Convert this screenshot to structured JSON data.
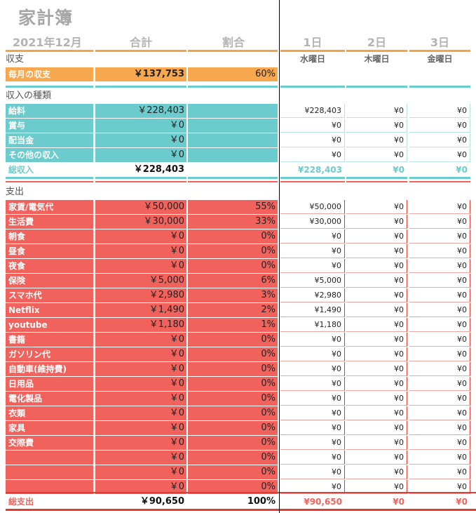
{
  "title": "家計簿",
  "header": {
    "month": "2021年12月",
    "total": "合計",
    "ratio": "割合",
    "days": [
      {
        "label": "1日",
        "weekday": "水曜日"
      },
      {
        "label": "2日",
        "weekday": "木曜日"
      },
      {
        "label": "3日",
        "weekday": "金曜日"
      }
    ]
  },
  "balance": {
    "section": "収支",
    "label": "毎月の収支",
    "total": "￥137,753",
    "ratio": "60%"
  },
  "income": {
    "section": "収入の種類",
    "rows": [
      {
        "label": "給料",
        "total": "￥228,403",
        "days": [
          "¥228,403",
          "¥0",
          "¥0"
        ]
      },
      {
        "label": "賞与",
        "total": "￥0",
        "days": [
          "¥0",
          "¥0",
          "¥0"
        ]
      },
      {
        "label": "配当金",
        "total": "￥0",
        "days": [
          "¥0",
          "¥0",
          "¥0"
        ]
      },
      {
        "label": "その他の収入",
        "total": "￥0",
        "days": [
          "¥0",
          "¥0",
          "¥0"
        ]
      }
    ],
    "sum": {
      "label": "総収入",
      "total": "￥228,403",
      "days": [
        "¥228,403",
        "¥0",
        "¥0"
      ]
    }
  },
  "expense": {
    "section": "支出",
    "rows": [
      {
        "label": "家賃/電気代",
        "total": "￥50,000",
        "ratio": "55%",
        "days": [
          "¥50,000",
          "¥0",
          "¥0"
        ]
      },
      {
        "label": "生活費",
        "total": "￥30,000",
        "ratio": "33%",
        "days": [
          "¥30,000",
          "¥0",
          "¥0"
        ]
      },
      {
        "label": "朝食",
        "total": "￥0",
        "ratio": "0%",
        "days": [
          "¥0",
          "¥0",
          "¥0"
        ]
      },
      {
        "label": "昼食",
        "total": "￥0",
        "ratio": "0%",
        "days": [
          "¥0",
          "¥0",
          "¥0"
        ]
      },
      {
        "label": "夜食",
        "total": "￥0",
        "ratio": "0%",
        "days": [
          "¥0",
          "¥0",
          "¥0"
        ]
      },
      {
        "label": "保険",
        "total": "￥5,000",
        "ratio": "6%",
        "days": [
          "¥5,000",
          "¥0",
          "¥0"
        ]
      },
      {
        "label": "スマホ代",
        "total": "￥2,980",
        "ratio": "3%",
        "days": [
          "¥2,980",
          "¥0",
          "¥0"
        ]
      },
      {
        "label": "Netflix",
        "total": "￥1,490",
        "ratio": "2%",
        "days": [
          "¥1,490",
          "¥0",
          "¥0"
        ]
      },
      {
        "label": "youtube",
        "total": "￥1,180",
        "ratio": "1%",
        "days": [
          "¥1,180",
          "¥0",
          "¥0"
        ]
      },
      {
        "label": "書籍",
        "total": "￥0",
        "ratio": "0%",
        "days": [
          "¥0",
          "¥0",
          "¥0"
        ]
      },
      {
        "label": "ガソリン代",
        "total": "￥0",
        "ratio": "0%",
        "days": [
          "¥0",
          "¥0",
          "¥0"
        ]
      },
      {
        "label": "自動車(維持費)",
        "total": "￥0",
        "ratio": "0%",
        "days": [
          "¥0",
          "¥0",
          "¥0"
        ]
      },
      {
        "label": "日用品",
        "total": "￥0",
        "ratio": "0%",
        "days": [
          "¥0",
          "¥0",
          "¥0"
        ]
      },
      {
        "label": "電化製品",
        "total": "￥0",
        "ratio": "0%",
        "days": [
          "¥0",
          "¥0",
          "¥0"
        ]
      },
      {
        "label": "衣類",
        "total": "￥0",
        "ratio": "0%",
        "days": [
          "¥0",
          "¥0",
          "¥0"
        ]
      },
      {
        "label": "家具",
        "total": "￥0",
        "ratio": "0%",
        "days": [
          "¥0",
          "¥0",
          "¥0"
        ]
      },
      {
        "label": "交際費",
        "total": "￥0",
        "ratio": "0%",
        "days": [
          "¥0",
          "¥0",
          "¥0"
        ]
      },
      {
        "label": "",
        "total": "￥0",
        "ratio": "0%",
        "days": [
          "¥0",
          "¥0",
          "¥0"
        ]
      },
      {
        "label": "",
        "total": "￥0",
        "ratio": "0%",
        "days": [
          "¥0",
          "¥0",
          "¥0"
        ]
      },
      {
        "label": "",
        "total": "￥0",
        "ratio": "0%",
        "days": [
          "¥0",
          "¥0",
          "¥0"
        ]
      }
    ],
    "sum": {
      "label": "総支出",
      "total": "￥90,650",
      "ratio": "100%",
      "days": [
        "¥90,650",
        "¥0",
        "¥0"
      ]
    }
  },
  "colors": {
    "teal": "#6ccbcc",
    "red": "#f2625c",
    "orange": "#f7a84f",
    "header_line": "#f4a446",
    "title_gray": "#a6a6a6"
  }
}
